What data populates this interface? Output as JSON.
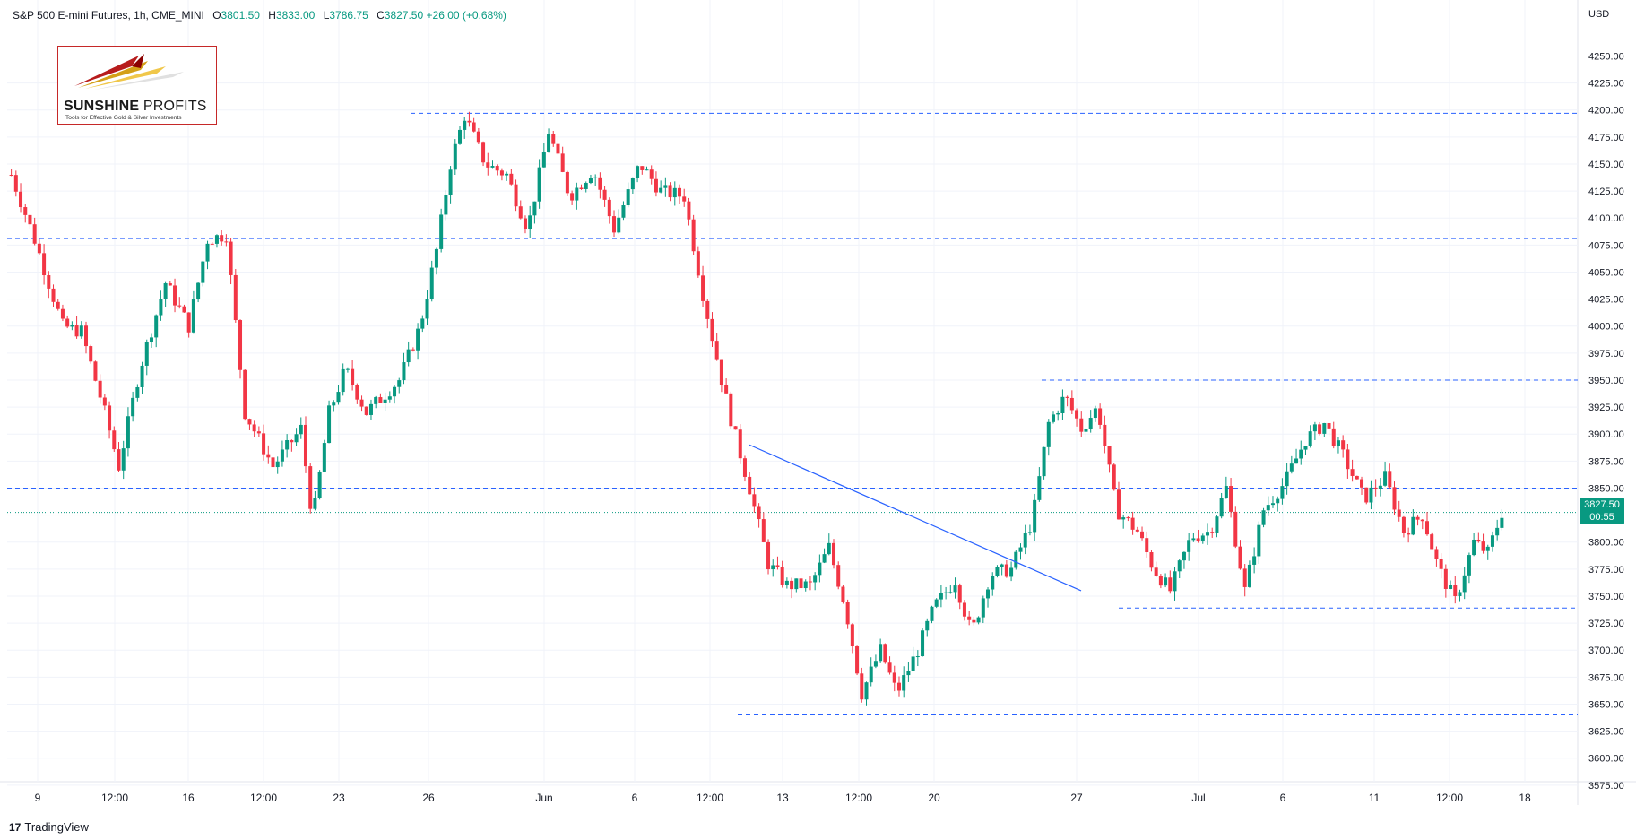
{
  "header": {
    "symbol": "S&P 500 E-mini Futures, 1h, CME_MINI",
    "open_label": "O",
    "open": "3801.50",
    "high_label": "H",
    "high": "3833.00",
    "low_label": "L",
    "low": "3786.75",
    "close_label": "C",
    "close": "3827.50",
    "change": "+26.00 (+0.68%)"
  },
  "logo": {
    "name_bold": "SUNSHINE",
    "name_rest": " PROFITS",
    "tagline": "Tools for Effective Gold & Silver Investments"
  },
  "axis": {
    "currency": "USD"
  },
  "last_price": {
    "price": "3827.50",
    "countdown": "00:55"
  },
  "footer": {
    "brand": "TradingView",
    "brand_mark": "17"
  },
  "colors": {
    "up": "#089981",
    "down": "#f23645",
    "level": "#2962ff",
    "trend": "#2962ff"
  },
  "chart_data": {
    "type": "candlestick",
    "y_ticks": [
      3575,
      3600,
      3625,
      3650,
      3675,
      3700,
      3725,
      3750,
      3775,
      3800,
      3825,
      3850,
      3875,
      3900,
      3925,
      3950,
      3975,
      4000,
      4025,
      4050,
      4075,
      4100,
      4125,
      4150,
      4175,
      4200,
      4225,
      4250
    ],
    "x_ticks": [
      "9",
      "12:00",
      "16",
      "12:00",
      "23",
      "26",
      "Jun",
      "6",
      "12:00",
      "13",
      "12:00",
      "20",
      "27",
      "Jul",
      "6",
      "11",
      "12:00",
      "18"
    ],
    "grid": true,
    "horizontal_levels": [
      {
        "price": 4197,
        "from_tick": "Mid May 26-27",
        "style": "dashed"
      },
      {
        "price": 4081,
        "style": "dashed"
      },
      {
        "price": 3850,
        "style": "dashed"
      },
      {
        "price": 3950,
        "style": "dashed"
      },
      {
        "price": 3739,
        "style": "dashed"
      },
      {
        "price": 3640,
        "style": "dashed"
      }
    ],
    "trend_line": {
      "start": {
        "date": "Jun 10",
        "price": 3890
      },
      "end": {
        "date": "Jun 26",
        "price": 3755
      }
    },
    "anchors": [
      {
        "x": 0.0,
        "price": 4140
      },
      {
        "x": 1.0,
        "price": 4080
      },
      {
        "x": 2.2,
        "price": 4000
      },
      {
        "x": 3.0,
        "price": 3995
      },
      {
        "x": 4.0,
        "price": 3920
      },
      {
        "x": 4.6,
        "price": 3870
      },
      {
        "x": 5.5,
        "price": 3960
      },
      {
        "x": 6.6,
        "price": 4040
      },
      {
        "x": 7.6,
        "price": 4000
      },
      {
        "x": 8.4,
        "price": 4080
      },
      {
        "x": 9.2,
        "price": 4085
      },
      {
        "x": 10.0,
        "price": 3920
      },
      {
        "x": 11.2,
        "price": 3870
      },
      {
        "x": 12.4,
        "price": 3905
      },
      {
        "x": 12.9,
        "price": 3820
      },
      {
        "x": 13.6,
        "price": 3920
      },
      {
        "x": 14.3,
        "price": 3960
      },
      {
        "x": 15.2,
        "price": 3920
      },
      {
        "x": 16.6,
        "price": 3950
      },
      {
        "x": 17.5,
        "price": 4000
      },
      {
        "x": 18.2,
        "price": 4070
      },
      {
        "x": 18.8,
        "price": 4150
      },
      {
        "x": 19.4,
        "price": 4195
      },
      {
        "x": 20.3,
        "price": 4150
      },
      {
        "x": 21.2,
        "price": 4140
      },
      {
        "x": 22.1,
        "price": 4090
      },
      {
        "x": 23.0,
        "price": 4180
      },
      {
        "x": 23.9,
        "price": 4120
      },
      {
        "x": 24.9,
        "price": 4145
      },
      {
        "x": 25.8,
        "price": 4090
      },
      {
        "x": 26.9,
        "price": 4150
      },
      {
        "x": 27.8,
        "price": 4125
      },
      {
        "x": 28.8,
        "price": 4120
      },
      {
        "x": 29.6,
        "price": 4030
      },
      {
        "x": 30.3,
        "price": 3960
      },
      {
        "x": 30.9,
        "price": 3905
      },
      {
        "x": 31.6,
        "price": 3850
      },
      {
        "x": 32.4,
        "price": 3780
      },
      {
        "x": 33.2,
        "price": 3760
      },
      {
        "x": 34.2,
        "price": 3760
      },
      {
        "x": 35.0,
        "price": 3795
      },
      {
        "x": 35.7,
        "price": 3740
      },
      {
        "x": 36.4,
        "price": 3660
      },
      {
        "x": 37.2,
        "price": 3700
      },
      {
        "x": 37.9,
        "price": 3660
      },
      {
        "x": 38.8,
        "price": 3700
      },
      {
        "x": 39.5,
        "price": 3740
      },
      {
        "x": 40.4,
        "price": 3765
      },
      {
        "x": 41.1,
        "price": 3715
      },
      {
        "x": 41.9,
        "price": 3770
      },
      {
        "x": 42.8,
        "price": 3775
      },
      {
        "x": 43.7,
        "price": 3820
      },
      {
        "x": 44.4,
        "price": 3910
      },
      {
        "x": 45.1,
        "price": 3935
      },
      {
        "x": 45.8,
        "price": 3905
      },
      {
        "x": 46.5,
        "price": 3925
      },
      {
        "x": 47.3,
        "price": 3830
      },
      {
        "x": 48.2,
        "price": 3810
      },
      {
        "x": 48.9,
        "price": 3775
      },
      {
        "x": 49.6,
        "price": 3755
      },
      {
        "x": 50.5,
        "price": 3805
      },
      {
        "x": 51.3,
        "price": 3810
      },
      {
        "x": 52.0,
        "price": 3850
      },
      {
        "x": 52.8,
        "price": 3755
      },
      {
        "x": 53.6,
        "price": 3830
      },
      {
        "x": 54.5,
        "price": 3855
      },
      {
        "x": 55.4,
        "price": 3895
      },
      {
        "x": 56.2,
        "price": 3910
      },
      {
        "x": 57.0,
        "price": 3880
      },
      {
        "x": 57.9,
        "price": 3840
      },
      {
        "x": 58.8,
        "price": 3860
      },
      {
        "x": 59.6,
        "price": 3810
      },
      {
        "x": 60.4,
        "price": 3825
      },
      {
        "x": 61.1,
        "price": 3775
      },
      {
        "x": 61.8,
        "price": 3745
      },
      {
        "x": 62.6,
        "price": 3800
      },
      {
        "x": 63.2,
        "price": 3790
      },
      {
        "x": 63.8,
        "price": 3827.5
      }
    ]
  }
}
